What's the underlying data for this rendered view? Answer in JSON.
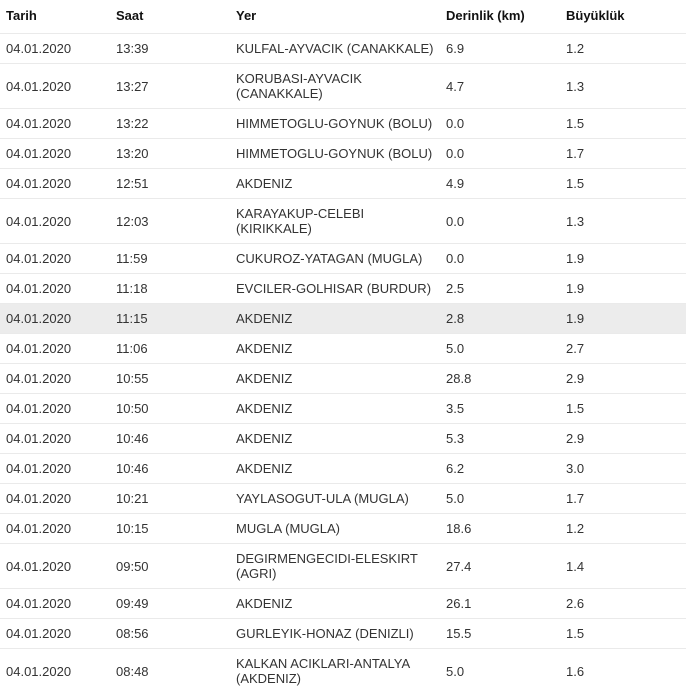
{
  "columns": {
    "tarih": "Tarih",
    "saat": "Saat",
    "yer": "Yer",
    "derinlik": "Derinlik (km)",
    "buyukluk": "Büyüklük"
  },
  "rows": [
    {
      "tarih": "04.01.2020",
      "saat": "13:39",
      "yer": "KULFAL-AYVACIK (CANAKKALE)",
      "derinlik": "6.9",
      "buyukluk": "1.2",
      "highlight": false
    },
    {
      "tarih": "04.01.2020",
      "saat": "13:27",
      "yer": "KORUBASI-AYVACIK (CANAKKALE)",
      "derinlik": "4.7",
      "buyukluk": "1.3",
      "highlight": false
    },
    {
      "tarih": "04.01.2020",
      "saat": "13:22",
      "yer": "HIMMETOGLU-GOYNUK (BOLU)",
      "derinlik": "0.0",
      "buyukluk": "1.5",
      "highlight": false
    },
    {
      "tarih": "04.01.2020",
      "saat": "13:20",
      "yer": "HIMMETOGLU-GOYNUK (BOLU)",
      "derinlik": "0.0",
      "buyukluk": "1.7",
      "highlight": false
    },
    {
      "tarih": "04.01.2020",
      "saat": "12:51",
      "yer": "AKDENIZ",
      "derinlik": "4.9",
      "buyukluk": "1.5",
      "highlight": false
    },
    {
      "tarih": "04.01.2020",
      "saat": "12:03",
      "yer": "KARAYAKUP-CELEBI (KIRIKKALE)",
      "derinlik": "0.0",
      "buyukluk": "1.3",
      "highlight": false
    },
    {
      "tarih": "04.01.2020",
      "saat": "11:59",
      "yer": "CUKUROZ-YATAGAN (MUGLA)",
      "derinlik": "0.0",
      "buyukluk": "1.9",
      "highlight": false
    },
    {
      "tarih": "04.01.2020",
      "saat": "11:18",
      "yer": "EVCILER-GOLHISAR (BURDUR)",
      "derinlik": "2.5",
      "buyukluk": "1.9",
      "highlight": false
    },
    {
      "tarih": "04.01.2020",
      "saat": "11:15",
      "yer": "AKDENIZ",
      "derinlik": "2.8",
      "buyukluk": "1.9",
      "highlight": true
    },
    {
      "tarih": "04.01.2020",
      "saat": "11:06",
      "yer": "AKDENIZ",
      "derinlik": "5.0",
      "buyukluk": "2.7",
      "highlight": false
    },
    {
      "tarih": "04.01.2020",
      "saat": "10:55",
      "yer": "AKDENIZ",
      "derinlik": "28.8",
      "buyukluk": "2.9",
      "highlight": false
    },
    {
      "tarih": "04.01.2020",
      "saat": "10:50",
      "yer": "AKDENIZ",
      "derinlik": "3.5",
      "buyukluk": "1.5",
      "highlight": false
    },
    {
      "tarih": "04.01.2020",
      "saat": "10:46",
      "yer": "AKDENIZ",
      "derinlik": "5.3",
      "buyukluk": "2.9",
      "highlight": false
    },
    {
      "tarih": "04.01.2020",
      "saat": "10:46",
      "yer": "AKDENIZ",
      "derinlik": "6.2",
      "buyukluk": "3.0",
      "highlight": false
    },
    {
      "tarih": "04.01.2020",
      "saat": "10:21",
      "yer": "YAYLASOGUT-ULA (MUGLA)",
      "derinlik": "5.0",
      "buyukluk": "1.7",
      "highlight": false
    },
    {
      "tarih": "04.01.2020",
      "saat": "10:15",
      "yer": "MUGLA (MUGLA)",
      "derinlik": "18.6",
      "buyukluk": "1.2",
      "highlight": false
    },
    {
      "tarih": "04.01.2020",
      "saat": "09:50",
      "yer": "DEGIRMENGECIDI-ELESKIRT (AGRI)",
      "derinlik": "27.4",
      "buyukluk": "1.4",
      "highlight": false
    },
    {
      "tarih": "04.01.2020",
      "saat": "09:49",
      "yer": "AKDENIZ",
      "derinlik": "26.1",
      "buyukluk": "2.6",
      "highlight": false
    },
    {
      "tarih": "04.01.2020",
      "saat": "08:56",
      "yer": "GURLEYIK-HONAZ (DENIZLI)",
      "derinlik": "15.5",
      "buyukluk": "1.5",
      "highlight": false
    },
    {
      "tarih": "04.01.2020",
      "saat": "08:48",
      "yer": "KALKAN ACIKLARI-ANTALYA (AKDENIZ)",
      "derinlik": "5.0",
      "buyukluk": "1.6",
      "highlight": false
    }
  ]
}
